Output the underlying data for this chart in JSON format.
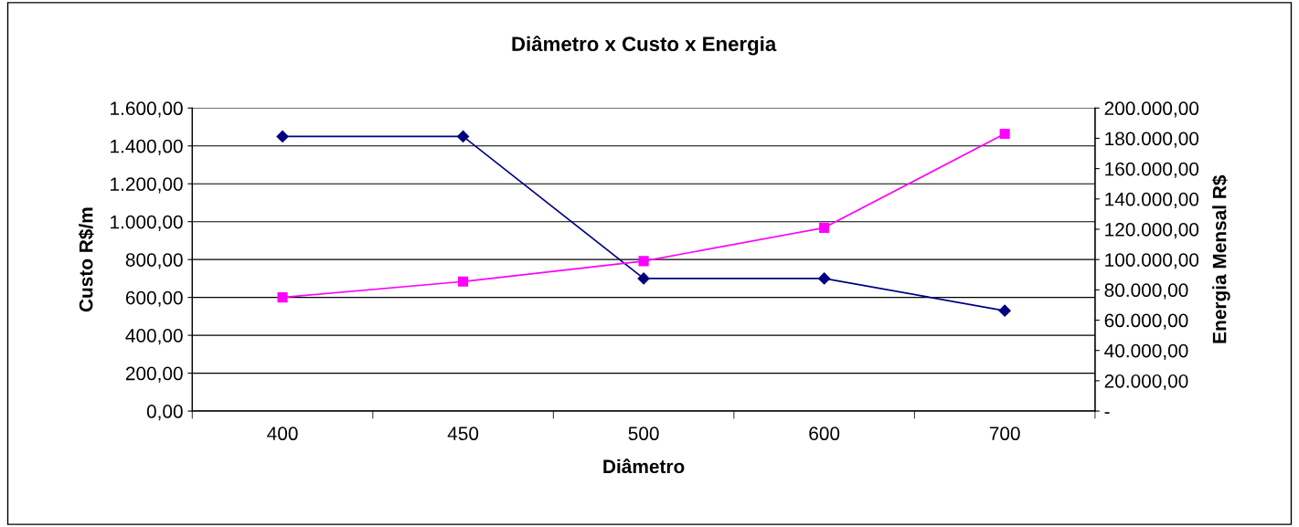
{
  "chart_data": {
    "type": "line",
    "title": "Diâmetro x Custo x Energia",
    "xlabel": "Diâmetro",
    "ylabel": "Custo R$/m",
    "y2label": "Energia Mensal R$",
    "categories": [
      "400",
      "450",
      "500",
      "600",
      "700"
    ],
    "series": [
      {
        "name": null,
        "color": "#000080",
        "marker": "diamond",
        "values": [
          1450,
          1450,
          700,
          700,
          530
        ]
      },
      {
        "name": null,
        "color": "#ff00ff",
        "marker": "square",
        "axis": "y2",
        "values": [
          75000,
          85500,
          99000,
          121000,
          183000
        ]
      }
    ],
    "ylim": [
      0,
      1600
    ],
    "yticks": [
      {
        "value": 0,
        "label": "0,00"
      },
      {
        "value": 200,
        "label": "200,00"
      },
      {
        "value": 400,
        "label": "400,00"
      },
      {
        "value": 600,
        "label": "600,00"
      },
      {
        "value": 800,
        "label": "800,00"
      },
      {
        "value": 1000,
        "label": "1.000,00"
      },
      {
        "value": 1200,
        "label": "1.200,00"
      },
      {
        "value": 1400,
        "label": "1.400,00"
      },
      {
        "value": 1600,
        "label": "1.600,00"
      }
    ],
    "y2lim": [
      0,
      200000
    ],
    "y2ticks": [
      {
        "value": 0,
        "label": "-"
      },
      {
        "value": 20000,
        "label": "20.000,00"
      },
      {
        "value": 40000,
        "label": "40.000,00"
      },
      {
        "value": 60000,
        "label": "60.000,00"
      },
      {
        "value": 80000,
        "label": "80.000,00"
      },
      {
        "value": 100000,
        "label": "100.000,00"
      },
      {
        "value": 120000,
        "label": "120.000,00"
      },
      {
        "value": 140000,
        "label": "140.000,00"
      },
      {
        "value": 160000,
        "label": "160.000,00"
      },
      {
        "value": 180000,
        "label": "180.000,00"
      },
      {
        "value": 200000,
        "label": "200.000,00"
      }
    ],
    "grid": "y",
    "line_style": "solid"
  }
}
